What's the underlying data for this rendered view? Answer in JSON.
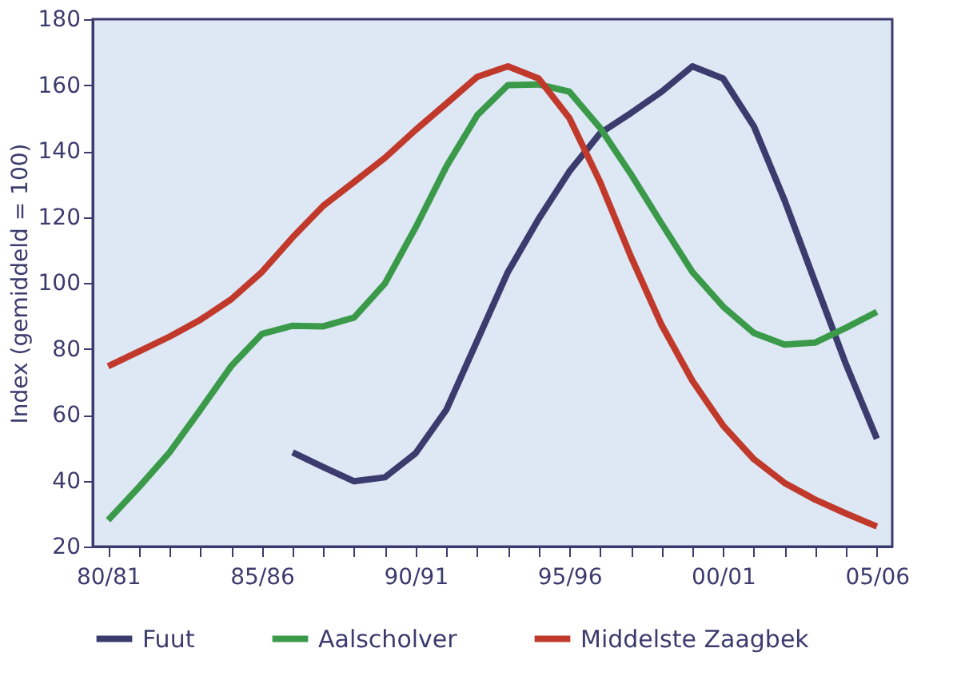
{
  "chart_data": {
    "type": "line",
    "ylabel": "Index (gemiddeld = 100)",
    "categories": [
      "80/81",
      null,
      null,
      null,
      null,
      "85/86",
      null,
      null,
      null,
      null,
      "90/91",
      null,
      null,
      null,
      null,
      "95/96",
      null,
      null,
      null,
      null,
      "00/01",
      null,
      null,
      null,
      null,
      "05/06"
    ],
    "ylim": [
      20,
      180
    ],
    "yticks": [
      20,
      40,
      60,
      80,
      100,
      120,
      140,
      160,
      180
    ],
    "grid": false,
    "legend": "bottom",
    "line_style": "solid",
    "marker": "none",
    "series": [
      {
        "name": "Fuut",
        "color": "#3b3b6e",
        "values": [
          null,
          null,
          null,
          null,
          null,
          null,
          48.6,
          44.1,
          39.8,
          41,
          48.3,
          61.5,
          82.4,
          103.3,
          119.4,
          133.8,
          145.4,
          151.5,
          158,
          165.7,
          162,
          147.5,
          125,
          100,
          75.2,
          52.7
        ]
      },
      {
        "name": "Aalscholver",
        "color": "#3a9a4a",
        "values": [
          28,
          38,
          48.6,
          61.5,
          74.7,
          84.5,
          87,
          86.8,
          89.5,
          99.8,
          116.8,
          135.3,
          150.8,
          160,
          160.2,
          158,
          147,
          133,
          118,
          103.3,
          92.8,
          84.8,
          81.3,
          81.9,
          86.4,
          91.2
        ]
      },
      {
        "name": "Middelste Zaagbek",
        "color": "#c0392b",
        "values": [
          74.7,
          79.2,
          83.7,
          88.8,
          95,
          103.3,
          113.8,
          123.4,
          130.6,
          137.9,
          146.4,
          154.4,
          162.5,
          165.7,
          162,
          150,
          130.6,
          108,
          87.2,
          70.3,
          56.7,
          46.5,
          39.3,
          34.2,
          30,
          26.1
        ]
      }
    ]
  }
}
